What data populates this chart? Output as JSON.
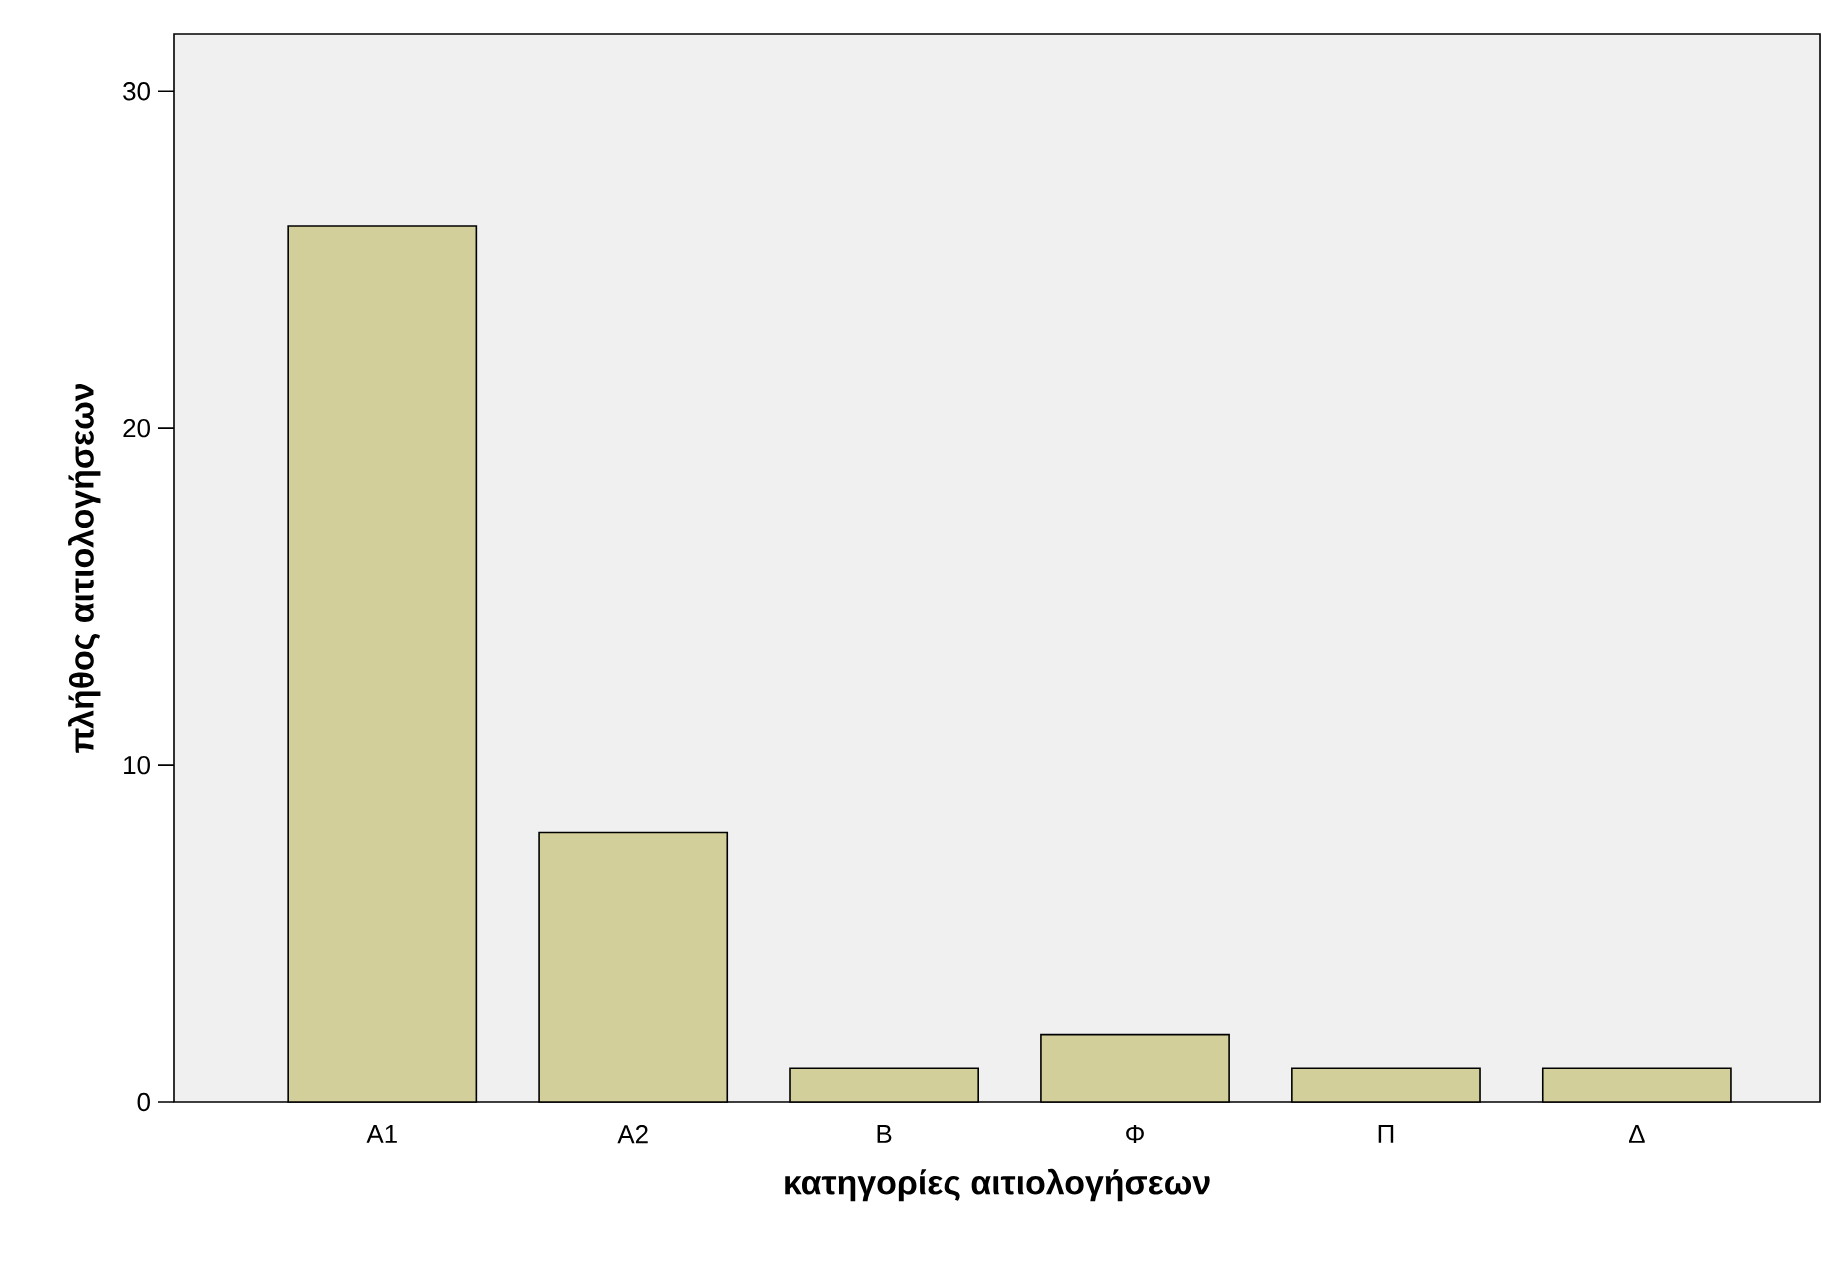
{
  "chart_data": {
    "type": "bar",
    "xlabel": "κατηγορίες αιτιολογήσεων",
    "ylabel": "πλήθος αιτιολογήσεων",
    "categories": [
      "Α1",
      "Α2",
      "Β",
      "Φ",
      "Π",
      "Δ"
    ],
    "values": [
      26,
      8,
      1,
      2,
      1,
      1
    ],
    "color": "#d3cf9a",
    "ylim": [
      0,
      31.7
    ],
    "yticks": [
      0,
      10,
      20,
      30
    ]
  }
}
